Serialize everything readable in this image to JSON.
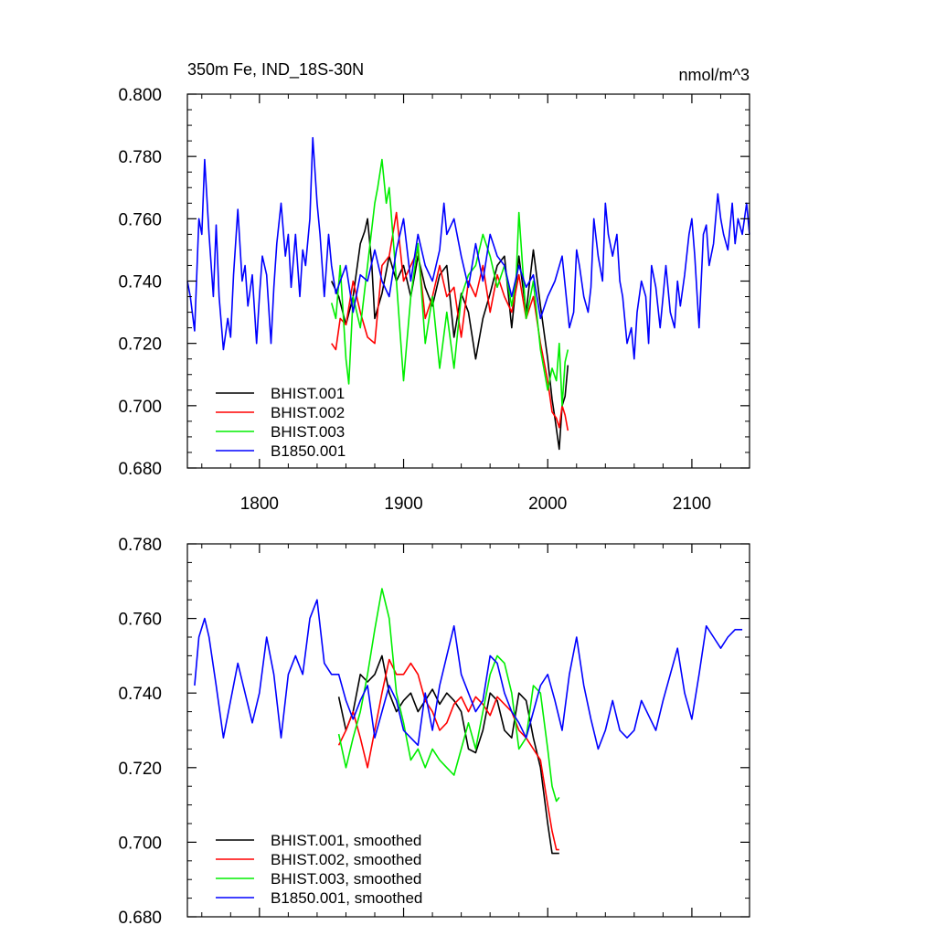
{
  "figure": {
    "title_left": "350m Fe, IND_18S-30N",
    "title_right": "nmol/m^3"
  },
  "chart_data": [
    {
      "type": "line",
      "title": "350m Fe, IND_18S-30N",
      "units_label": "nmol/m^3",
      "xlabel": "",
      "ylabel": "",
      "xlim": [
        1750,
        2140
      ],
      "ylim": [
        0.68,
        0.8
      ],
      "xticks": [
        1800,
        1900,
        2000,
        2100
      ],
      "xtick_labels": [
        "1800",
        "1900",
        "2000",
        "2100"
      ],
      "yticks": [
        0.68,
        0.7,
        0.72,
        0.74,
        0.76,
        0.78,
        0.8
      ],
      "ytick_labels": [
        "0.680",
        "0.700",
        "0.720",
        "0.740",
        "0.760",
        "0.780",
        "0.800"
      ],
      "grid": false,
      "legend": "bottom-left",
      "series": [
        {
          "name": "BHIST.001",
          "color": "#000000",
          "x": [
            1850,
            1855,
            1860,
            1865,
            1870,
            1873,
            1875,
            1878,
            1880,
            1885,
            1890,
            1895,
            1900,
            1905,
            1910,
            1915,
            1920,
            1925,
            1930,
            1935,
            1940,
            1945,
            1950,
            1955,
            1960,
            1965,
            1970,
            1975,
            1980,
            1985,
            1990,
            1995,
            2000,
            2003,
            2005,
            2008,
            2010,
            2012,
            2014
          ],
          "y": [
            0.74,
            0.735,
            0.726,
            0.735,
            0.752,
            0.756,
            0.76,
            0.745,
            0.728,
            0.736,
            0.748,
            0.74,
            0.745,
            0.735,
            0.748,
            0.738,
            0.732,
            0.742,
            0.745,
            0.722,
            0.736,
            0.73,
            0.715,
            0.728,
            0.736,
            0.745,
            0.748,
            0.725,
            0.748,
            0.73,
            0.75,
            0.732,
            0.715,
            0.702,
            0.696,
            0.686,
            0.7,
            0.703,
            0.713
          ]
        },
        {
          "name": "BHIST.002",
          "color": "#ff0000",
          "x": [
            1850,
            1853,
            1856,
            1860,
            1865,
            1870,
            1875,
            1880,
            1885,
            1890,
            1895,
            1900,
            1905,
            1910,
            1915,
            1920,
            1925,
            1930,
            1935,
            1940,
            1945,
            1950,
            1955,
            1960,
            1965,
            1970,
            1975,
            1980,
            1985,
            1990,
            1995,
            2000,
            2003,
            2006,
            2008,
            2010,
            2012,
            2014
          ],
          "y": [
            0.72,
            0.718,
            0.728,
            0.726,
            0.74,
            0.73,
            0.722,
            0.72,
            0.745,
            0.748,
            0.762,
            0.74,
            0.745,
            0.75,
            0.728,
            0.735,
            0.745,
            0.735,
            0.738,
            0.722,
            0.74,
            0.735,
            0.745,
            0.73,
            0.742,
            0.735,
            0.73,
            0.742,
            0.728,
            0.735,
            0.72,
            0.708,
            0.698,
            0.696,
            0.693,
            0.7,
            0.697,
            0.692
          ]
        },
        {
          "name": "BHIST.003",
          "color": "#00ee00",
          "x": [
            1850,
            1853,
            1856,
            1860,
            1862,
            1865,
            1870,
            1875,
            1880,
            1882,
            1885,
            1888,
            1890,
            1895,
            1900,
            1905,
            1910,
            1915,
            1920,
            1925,
            1930,
            1935,
            1940,
            1945,
            1950,
            1955,
            1960,
            1965,
            1970,
            1975,
            1978,
            1980,
            1985,
            1990,
            1995,
            2000,
            2003,
            2006,
            2008,
            2010,
            2012,
            2014
          ],
          "y": [
            0.733,
            0.728,
            0.745,
            0.715,
            0.707,
            0.735,
            0.725,
            0.745,
            0.765,
            0.77,
            0.779,
            0.765,
            0.77,
            0.74,
            0.708,
            0.735,
            0.752,
            0.72,
            0.735,
            0.712,
            0.73,
            0.712,
            0.735,
            0.742,
            0.745,
            0.755,
            0.748,
            0.738,
            0.745,
            0.732,
            0.74,
            0.762,
            0.728,
            0.74,
            0.718,
            0.705,
            0.712,
            0.708,
            0.72,
            0.7,
            0.714,
            0.718
          ]
        },
        {
          "name": "B1850.001",
          "color": "#0000ff",
          "x": [
            1750,
            1752,
            1755,
            1758,
            1760,
            1762,
            1765,
            1768,
            1770,
            1772,
            1775,
            1778,
            1780,
            1782,
            1785,
            1788,
            1790,
            1792,
            1795,
            1798,
            1800,
            1802,
            1805,
            1808,
            1810,
            1812,
            1815,
            1818,
            1820,
            1822,
            1825,
            1828,
            1830,
            1832,
            1835,
            1837,
            1840,
            1842,
            1845,
            1848,
            1850,
            1853,
            1856,
            1860,
            1865,
            1870,
            1875,
            1880,
            1885,
            1890,
            1895,
            1900,
            1905,
            1910,
            1915,
            1920,
            1925,
            1928,
            1930,
            1935,
            1940,
            1945,
            1950,
            1955,
            1960,
            1965,
            1970,
            1975,
            1980,
            1985,
            1990,
            1995,
            2000,
            2005,
            2010,
            2015,
            2018,
            2020,
            2022,
            2025,
            2028,
            2030,
            2032,
            2035,
            2038,
            2040,
            2042,
            2045,
            2048,
            2050,
            2052,
            2055,
            2058,
            2060,
            2062,
            2065,
            2068,
            2070,
            2072,
            2075,
            2078,
            2080,
            2082,
            2085,
            2088,
            2090,
            2092,
            2095,
            2098,
            2100,
            2102,
            2105,
            2108,
            2110,
            2112,
            2115,
            2118,
            2120,
            2122,
            2125,
            2128,
            2130,
            2132,
            2135,
            2138,
            2140
          ],
          "y": [
            0.74,
            0.735,
            0.724,
            0.76,
            0.755,
            0.779,
            0.755,
            0.735,
            0.758,
            0.735,
            0.718,
            0.728,
            0.722,
            0.742,
            0.763,
            0.74,
            0.745,
            0.732,
            0.742,
            0.72,
            0.735,
            0.748,
            0.742,
            0.72,
            0.738,
            0.752,
            0.765,
            0.748,
            0.755,
            0.738,
            0.755,
            0.735,
            0.75,
            0.745,
            0.76,
            0.786,
            0.765,
            0.755,
            0.735,
            0.755,
            0.745,
            0.736,
            0.74,
            0.745,
            0.73,
            0.742,
            0.74,
            0.75,
            0.74,
            0.735,
            0.75,
            0.76,
            0.74,
            0.755,
            0.745,
            0.74,
            0.75,
            0.765,
            0.755,
            0.76,
            0.748,
            0.738,
            0.752,
            0.74,
            0.755,
            0.748,
            0.745,
            0.735,
            0.745,
            0.738,
            0.742,
            0.728,
            0.735,
            0.74,
            0.748,
            0.725,
            0.73,
            0.75,
            0.745,
            0.735,
            0.73,
            0.738,
            0.76,
            0.748,
            0.74,
            0.765,
            0.755,
            0.748,
            0.755,
            0.74,
            0.735,
            0.72,
            0.725,
            0.715,
            0.73,
            0.74,
            0.735,
            0.72,
            0.745,
            0.738,
            0.725,
            0.735,
            0.745,
            0.73,
            0.725,
            0.74,
            0.732,
            0.742,
            0.755,
            0.76,
            0.748,
            0.725,
            0.755,
            0.758,
            0.745,
            0.752,
            0.768,
            0.76,
            0.755,
            0.75,
            0.765,
            0.752,
            0.76,
            0.755,
            0.765,
            0.755
          ]
        }
      ]
    },
    {
      "type": "line",
      "xlim": [
        1750,
        2140
      ],
      "ylim": [
        0.68,
        0.78
      ],
      "xticks": [
        1800,
        1900,
        2000,
        2100
      ],
      "yticks": [
        0.68,
        0.7,
        0.72,
        0.74,
        0.76,
        0.78
      ],
      "ytick_labels": [
        "0.680",
        "0.700",
        "0.720",
        "0.740",
        "0.760",
        "0.780"
      ],
      "grid": false,
      "legend": "bottom-left",
      "series": [
        {
          "name": "BHIST.001, smoothed",
          "color": "#000000",
          "x": [
            1855,
            1860,
            1865,
            1870,
            1875,
            1880,
            1885,
            1890,
            1895,
            1900,
            1905,
            1910,
            1915,
            1920,
            1925,
            1930,
            1935,
            1940,
            1945,
            1950,
            1955,
            1960,
            1965,
            1970,
            1975,
            1980,
            1985,
            1990,
            1995,
            2000,
            2003,
            2006,
            2008
          ],
          "y": [
            0.739,
            0.73,
            0.735,
            0.745,
            0.743,
            0.745,
            0.75,
            0.74,
            0.735,
            0.738,
            0.74,
            0.735,
            0.738,
            0.741,
            0.737,
            0.74,
            0.738,
            0.735,
            0.725,
            0.724,
            0.73,
            0.74,
            0.738,
            0.73,
            0.728,
            0.74,
            0.738,
            0.728,
            0.72,
            0.705,
            0.697,
            0.697,
            0.697
          ]
        },
        {
          "name": "BHIST.002, smoothed",
          "color": "#ff0000",
          "x": [
            1855,
            1860,
            1865,
            1870,
            1875,
            1880,
            1885,
            1890,
            1895,
            1900,
            1905,
            1910,
            1915,
            1920,
            1925,
            1930,
            1935,
            1940,
            1945,
            1950,
            1955,
            1960,
            1965,
            1970,
            1975,
            1980,
            1985,
            1990,
            1995,
            2000,
            2003,
            2006,
            2008
          ],
          "y": [
            0.726,
            0.73,
            0.735,
            0.728,
            0.72,
            0.73,
            0.74,
            0.749,
            0.745,
            0.745,
            0.748,
            0.745,
            0.738,
            0.735,
            0.73,
            0.732,
            0.737,
            0.739,
            0.735,
            0.739,
            0.737,
            0.734,
            0.739,
            0.737,
            0.735,
            0.73,
            0.728,
            0.725,
            0.722,
            0.71,
            0.703,
            0.698,
            0.698
          ]
        },
        {
          "name": "BHIST.003, smoothed",
          "color": "#00ee00",
          "x": [
            1855,
            1860,
            1865,
            1870,
            1875,
            1880,
            1885,
            1890,
            1895,
            1900,
            1905,
            1910,
            1915,
            1920,
            1925,
            1930,
            1935,
            1940,
            1945,
            1950,
            1955,
            1960,
            1965,
            1970,
            1975,
            1980,
            1985,
            1990,
            1995,
            2000,
            2003,
            2006,
            2008
          ],
          "y": [
            0.729,
            0.72,
            0.728,
            0.735,
            0.745,
            0.757,
            0.768,
            0.76,
            0.74,
            0.732,
            0.722,
            0.725,
            0.72,
            0.725,
            0.722,
            0.72,
            0.718,
            0.725,
            0.732,
            0.725,
            0.735,
            0.745,
            0.75,
            0.748,
            0.74,
            0.725,
            0.728,
            0.742,
            0.74,
            0.725,
            0.715,
            0.711,
            0.712
          ]
        },
        {
          "name": "B1850.001, smoothed",
          "color": "#0000ff",
          "x": [
            1755,
            1758,
            1762,
            1765,
            1770,
            1775,
            1780,
            1785,
            1790,
            1795,
            1800,
            1805,
            1810,
            1815,
            1820,
            1825,
            1830,
            1835,
            1840,
            1845,
            1850,
            1855,
            1860,
            1865,
            1870,
            1875,
            1880,
            1885,
            1890,
            1895,
            1900,
            1905,
            1910,
            1915,
            1920,
            1925,
            1930,
            1935,
            1940,
            1945,
            1950,
            1955,
            1960,
            1965,
            1970,
            1975,
            1980,
            1985,
            1990,
            1995,
            2000,
            2005,
            2010,
            2015,
            2020,
            2025,
            2030,
            2035,
            2040,
            2045,
            2050,
            2055,
            2060,
            2065,
            2070,
            2075,
            2080,
            2085,
            2090,
            2095,
            2100,
            2105,
            2110,
            2115,
            2120,
            2125,
            2130,
            2135
          ],
          "y": [
            0.742,
            0.755,
            0.76,
            0.755,
            0.742,
            0.728,
            0.738,
            0.748,
            0.74,
            0.732,
            0.74,
            0.755,
            0.745,
            0.728,
            0.745,
            0.75,
            0.745,
            0.76,
            0.765,
            0.748,
            0.745,
            0.745,
            0.738,
            0.733,
            0.738,
            0.742,
            0.728,
            0.735,
            0.742,
            0.738,
            0.73,
            0.728,
            0.726,
            0.74,
            0.73,
            0.742,
            0.75,
            0.758,
            0.745,
            0.74,
            0.735,
            0.738,
            0.75,
            0.748,
            0.74,
            0.735,
            0.732,
            0.728,
            0.735,
            0.742,
            0.745,
            0.738,
            0.73,
            0.745,
            0.755,
            0.742,
            0.733,
            0.725,
            0.73,
            0.738,
            0.73,
            0.728,
            0.73,
            0.738,
            0.734,
            0.73,
            0.738,
            0.745,
            0.752,
            0.74,
            0.733,
            0.745,
            0.758,
            0.755,
            0.752,
            0.755,
            0.757,
            0.757
          ]
        }
      ]
    }
  ]
}
